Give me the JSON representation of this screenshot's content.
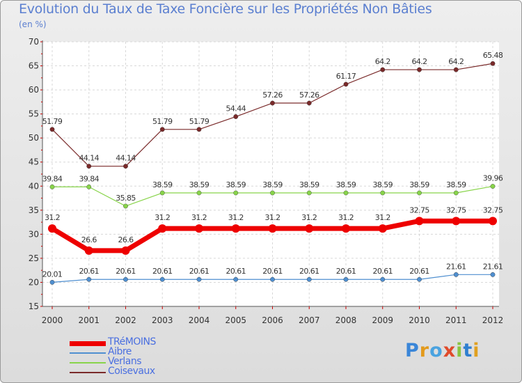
{
  "chart_data": {
    "type": "line",
    "title": "Evolution du Taux de Taxe Foncière sur les Propriétés Non Bâties",
    "subtitle": "(en %)",
    "categories": [
      "2000",
      "2001",
      "2002",
      "2003",
      "2004",
      "2005",
      "2006",
      "2007",
      "2008",
      "2009",
      "2010",
      "2011",
      "2012"
    ],
    "ylim": [
      15,
      70
    ],
    "yticks": [
      15,
      20,
      25,
      30,
      35,
      40,
      45,
      50,
      55,
      60,
      65,
      70
    ],
    "series": [
      {
        "name": "TRéMOINS",
        "color": "#ee0000",
        "values": [
          31.2,
          26.6,
          26.6,
          31.2,
          31.2,
          31.2,
          31.2,
          31.2,
          31.2,
          31.2,
          32.75,
          32.75,
          32.75
        ],
        "labels": [
          "31.2",
          "26.6",
          "26.6",
          "31.2",
          "31.2",
          "31.2",
          "31.2",
          "31.2",
          "31.2",
          "31.2",
          "32.75",
          "32.75",
          "32.75"
        ]
      },
      {
        "name": "Aibre",
        "color": "#4f8fd0",
        "values": [
          20.01,
          20.61,
          20.61,
          20.61,
          20.61,
          20.61,
          20.61,
          20.61,
          20.61,
          20.61,
          20.61,
          21.61,
          21.61
        ],
        "labels": [
          "20.01",
          "20.61",
          "20.61",
          "20.61",
          "20.61",
          "20.61",
          "20.61",
          "20.61",
          "20.61",
          "20.61",
          "20.61",
          "21.61",
          "21.61"
        ]
      },
      {
        "name": "Verlans",
        "color": "#88d44a",
        "values": [
          39.84,
          39.84,
          35.85,
          38.59,
          38.59,
          38.59,
          38.59,
          38.59,
          38.59,
          38.59,
          38.59,
          38.59,
          39.96
        ],
        "labels": [
          "39.84",
          "39.84",
          "35.85",
          "38.59",
          "38.59",
          "38.59",
          "38.59",
          "38.59",
          "38.59",
          "38.59",
          "38.59",
          "38.59",
          "39.96"
        ]
      },
      {
        "name": "Coisevaux",
        "color": "#7a2a2a",
        "values": [
          51.79,
          44.14,
          44.14,
          51.79,
          51.79,
          54.44,
          57.26,
          57.26,
          61.17,
          64.2,
          64.2,
          64.2,
          65.48
        ],
        "labels": [
          "51.79",
          "44.14",
          "44.14",
          "51.79",
          "51.79",
          "54.44",
          "57.26",
          "57.26",
          "61.17",
          "64.2",
          "64.2",
          "64.2",
          "65.48"
        ]
      }
    ]
  },
  "logo": {
    "text": "Proxiti"
  }
}
